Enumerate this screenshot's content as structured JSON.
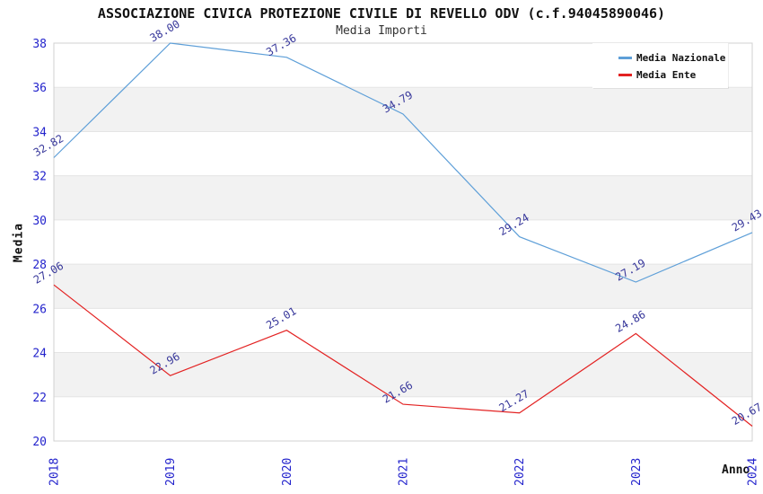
{
  "header": {
    "title": "ASSOCIAZIONE CIVICA PROTEZIONE CIVILE DI REVELLO ODV (c.f.94045890046)",
    "subtitle": "Media Importi"
  },
  "chart_data": {
    "type": "line",
    "title": "ASSOCIAZIONE CIVICA PROTEZIONE CIVILE DI REVELLO ODV (c.f.94045890046)",
    "subtitle": "Media Importi",
    "xlabel": "Anno",
    "ylabel": "Media",
    "categories": [
      2018,
      2019,
      2020,
      2021,
      2022,
      2023,
      2024
    ],
    "series": [
      {
        "name": "Media Nazionale",
        "color": "#5e9fd8",
        "values": [
          32.82,
          38.0,
          37.36,
          34.79,
          29.24,
          27.19,
          29.43
        ]
      },
      {
        "name": "Media Ente",
        "color": "#e32222",
        "values": [
          27.06,
          22.96,
          25.01,
          21.66,
          21.27,
          24.86,
          20.67
        ]
      }
    ],
    "ylim": [
      20,
      38
    ],
    "ytick_step": 2,
    "grid": true,
    "legend_position": "top-right",
    "colors": {
      "tick_label": "#2323cc",
      "point_label": "#38389b",
      "band": "#f2f2f2",
      "gridline": "#e4e4e4",
      "border": "#d0d0d0"
    }
  }
}
